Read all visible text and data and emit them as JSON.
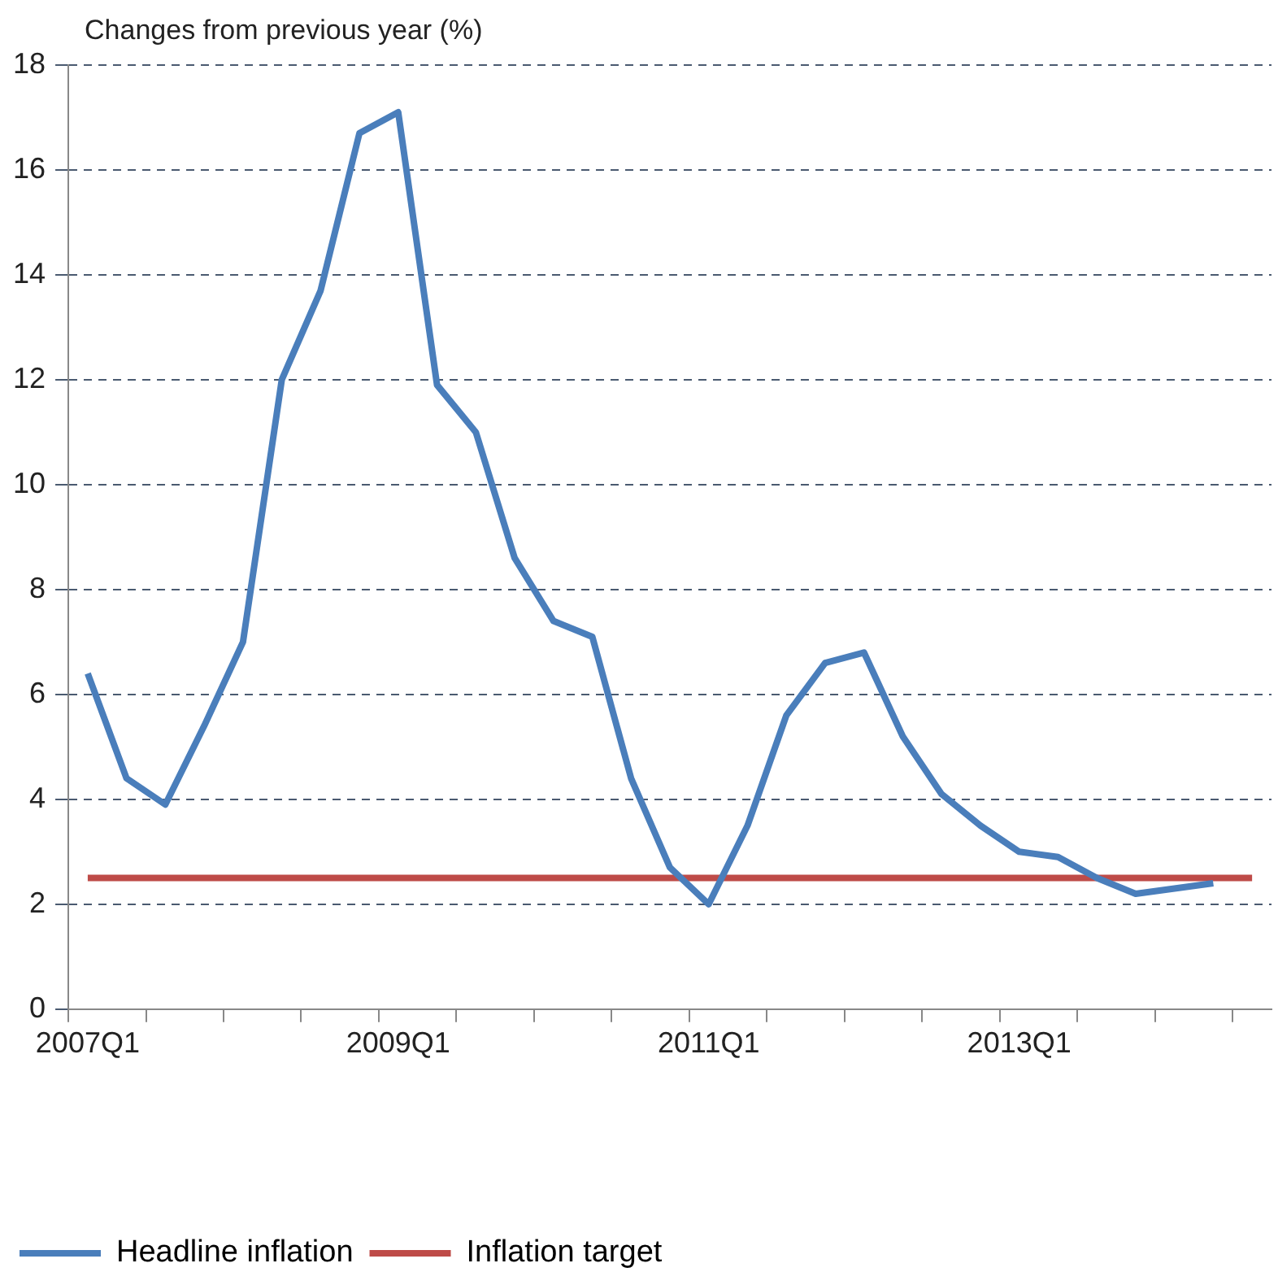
{
  "chart_data": {
    "type": "line",
    "ylabel": "Changes from previous year (%)",
    "categories": [
      "2007Q1",
      null,
      null,
      null,
      null,
      null,
      null,
      null,
      "2009Q1",
      null,
      null,
      null,
      null,
      null,
      null,
      null,
      "2011Q1",
      null,
      null,
      null,
      null,
      null,
      null,
      null,
      "2013Q1",
      null,
      null,
      null,
      null,
      null,
      null
    ],
    "series": [
      {
        "name": "Headline inflation",
        "color": "#4a7ebb",
        "values": [
          6.4,
          4.4,
          3.9,
          5.4,
          7.0,
          12.0,
          13.7,
          16.7,
          17.1,
          11.9,
          11.0,
          8.6,
          7.4,
          7.1,
          4.4,
          2.7,
          2.0,
          3.5,
          5.6,
          6.6,
          6.8,
          5.2,
          4.1,
          3.5,
          3.0,
          2.9,
          2.5,
          2.2,
          2.3,
          2.4,
          null
        ]
      },
      {
        "name": "Inflation target",
        "color": "#be4b48",
        "values": [
          2.5,
          2.5,
          2.5,
          2.5,
          2.5,
          2.5,
          2.5,
          2.5,
          2.5,
          2.5,
          2.5,
          2.5,
          2.5,
          2.5,
          2.5,
          2.5,
          2.5,
          2.5,
          2.5,
          2.5,
          2.5,
          2.5,
          2.5,
          2.5,
          2.5,
          2.5,
          2.5,
          2.5,
          2.5,
          2.5,
          2.5
        ]
      }
    ],
    "ylim": [
      0,
      18
    ],
    "yticks": [
      0,
      2,
      4,
      6,
      8,
      10,
      12,
      14,
      16,
      18
    ],
    "grid": "y",
    "legend": "bottom",
    "marker": "none",
    "line_style": "solid"
  }
}
